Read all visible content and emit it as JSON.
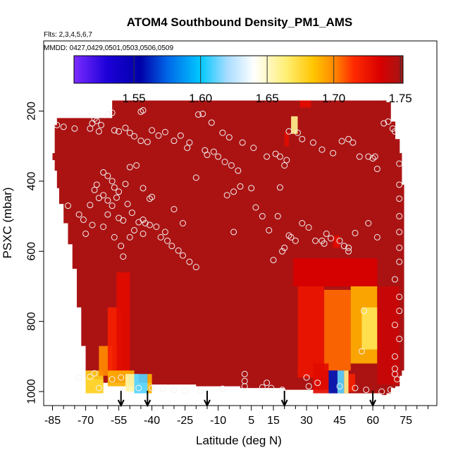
{
  "chart_data": {
    "type": "heatmap",
    "title": "ATOM4 Southbound Density_PM1_AMS",
    "flights_label": "Flts: 2,3,4,5,6,7",
    "dates_label": "MMDD: 0427,0429,0501,0503,0506,0509",
    "xlabel": "Latitude (deg N)",
    "ylabel": "PSXC (mbar)",
    "xlim": [
      -89,
      89
    ],
    "ylim": [
      1040,
      0
    ],
    "x_ticks": [
      -85,
      -70,
      -55,
      -40,
      -25,
      -10,
      5,
      15,
      30,
      45,
      60,
      75
    ],
    "x_tick_labels": [
      "-85",
      "-70",
      "-55",
      "-40",
      "-25",
      "-10",
      "5",
      "15",
      "30",
      "45",
      "60",
      "75"
    ],
    "y_ticks": [
      200,
      400,
      600,
      800,
      1000
    ],
    "y_tick_labels": [
      "200",
      "400",
      "600",
      "800",
      "1000"
    ],
    "colorbar": {
      "min": 1.505,
      "max": 1.752,
      "ticks": [
        1.55,
        1.6,
        1.65,
        1.7,
        1.75
      ],
      "tick_labels": [
        "1.55",
        "1.60",
        "1.65",
        "1.70",
        "1.75"
      ],
      "stops": [
        {
          "value": 1.505,
          "color": "#7b2cff"
        },
        {
          "value": 1.53,
          "color": "#1c00d8"
        },
        {
          "value": 1.555,
          "color": "#0000a8"
        },
        {
          "value": 1.575,
          "color": "#0066e8"
        },
        {
          "value": 1.6,
          "color": "#00c8ff"
        },
        {
          "value": 1.62,
          "color": "#a8dcff"
        },
        {
          "value": 1.64,
          "color": "#ffffff"
        },
        {
          "value": 1.665,
          "color": "#ffee70"
        },
        {
          "value": 1.685,
          "color": "#ffc400"
        },
        {
          "value": 1.7,
          "color": "#ff8a00"
        },
        {
          "value": 1.715,
          "color": "#ff2a00"
        },
        {
          "value": 1.735,
          "color": "#d80000"
        },
        {
          "value": 1.752,
          "color": "#a51616"
        }
      ]
    },
    "background_value": 1.75,
    "coverage": {
      "columns": [
        [
          -85,
          320,
          340
        ],
        [
          -84,
          240,
          370
        ],
        [
          -83,
          220,
          420
        ],
        [
          -82,
          220,
          465
        ],
        [
          -80,
          220,
          520
        ],
        [
          -78,
          220,
          580
        ],
        [
          -76,
          220,
          650
        ],
        [
          -74,
          220,
          760
        ],
        [
          -72,
          220,
          870
        ],
        [
          -70,
          220,
          960
        ],
        [
          -66,
          220,
          965
        ],
        [
          -62,
          220,
          975
        ],
        [
          -58,
          170,
          975
        ],
        [
          -40,
          170,
          980
        ],
        [
          -20,
          170,
          985
        ],
        [
          0,
          170,
          990
        ],
        [
          20,
          170,
          995
        ],
        [
          40,
          170,
          1005
        ],
        [
          55,
          170,
          1005
        ],
        [
          64,
          170,
          1010
        ],
        [
          66,
          175,
          1005
        ],
        [
          68,
          230,
          990
        ],
        [
          70,
          280,
          985
        ],
        [
          72,
          320,
          955
        ],
        [
          73,
          410,
          940
        ]
      ]
    },
    "anomalies": [
      {
        "lat": [
          -70,
          -62
        ],
        "p": [
          940,
          1005
        ],
        "value": 1.68
      },
      {
        "lat": [
          -64,
          -58
        ],
        "p": [
          870,
          955
        ],
        "value": 1.7
      },
      {
        "lat": [
          -60,
          -54
        ],
        "p": [
          760,
          960
        ],
        "value": 1.72
      },
      {
        "lat": [
          -56,
          -50
        ],
        "p": [
          660,
          960
        ],
        "value": 1.73
      },
      {
        "lat": [
          -60,
          -48
        ],
        "p": [
          940,
          985
        ],
        "value": 1.69
      },
      {
        "lat": [
          -52,
          -46
        ],
        "p": [
          950,
          1000
        ],
        "value": 1.655
      },
      {
        "lat": [
          -48,
          -42
        ],
        "p": [
          950,
          1005
        ],
        "value": 1.61
      },
      {
        "lat": [
          -42,
          -40
        ],
        "p": [
          950,
          1005
        ],
        "value": 1.69
      },
      {
        "lat": [
          27,
          32
        ],
        "p": [
          170,
          190
        ],
        "value": 1.73
      },
      {
        "lat": [
          23,
          26
        ],
        "p": [
          215,
          265
        ],
        "value": 1.66
      },
      {
        "lat": [
          20,
          22
        ],
        "p": [
          260,
          300
        ],
        "value": 1.73
      },
      {
        "lat": [
          24,
          62
        ],
        "p": [
          620,
          700
        ],
        "value": 1.735
      },
      {
        "lat": [
          26,
          38
        ],
        "p": [
          700,
          960
        ],
        "value": 1.725
      },
      {
        "lat": [
          38,
          50
        ],
        "p": [
          710,
          940
        ],
        "value": 1.705
      },
      {
        "lat": [
          50,
          62
        ],
        "p": [
          700,
          920
        ],
        "value": 1.69
      },
      {
        "lat": [
          55,
          62
        ],
        "p": [
          760,
          880
        ],
        "value": 1.67
      },
      {
        "lat": [
          62,
          72
        ],
        "p": [
          700,
          980
        ],
        "value": 1.74
      },
      {
        "lat": [
          33,
          40
        ],
        "p": [
          920,
          1005
        ],
        "value": 1.73
      },
      {
        "lat": [
          40,
          44
        ],
        "p": [
          940,
          1005
        ],
        "value": 1.56
      },
      {
        "lat": [
          44,
          47
        ],
        "p": [
          940,
          1005
        ],
        "value": 1.61
      },
      {
        "lat": [
          47,
          49
        ],
        "p": [
          940,
          1005
        ],
        "value": 1.66
      },
      {
        "lat": [
          49,
          52
        ],
        "p": [
          950,
          1000
        ],
        "value": 1.72
      },
      {
        "lat": [
          42,
          45
        ],
        "p": [
          555,
          590
        ],
        "value": 1.73
      }
    ],
    "points": [
      [
        -83,
        240
      ],
      [
        -80,
        245
      ],
      [
        -75,
        250
      ],
      [
        -68,
        250
      ],
      [
        -67,
        235
      ],
      [
        -66,
        222
      ],
      [
        -65,
        228
      ],
      [
        -64,
        258
      ],
      [
        -63,
        240
      ],
      [
        -60,
        210
      ],
      [
        -58,
        205
      ],
      [
        -57,
        255
      ],
      [
        -55,
        258
      ],
      [
        -52,
        248
      ],
      [
        -50,
        262
      ],
      [
        -48,
        272
      ],
      [
        -45,
        202
      ],
      [
        -44,
        198
      ],
      [
        -45,
        285
      ],
      [
        -42,
        288
      ],
      [
        -40,
        255
      ],
      [
        -37,
        270
      ],
      [
        -34,
        260
      ],
      [
        -30,
        285
      ],
      [
        -27,
        270
      ],
      [
        -24,
        305
      ],
      [
        -23,
        290
      ],
      [
        -16,
        312
      ],
      [
        -15,
        325
      ],
      [
        -12,
        316
      ],
      [
        -10,
        330
      ],
      [
        -7,
        345
      ],
      [
        -4,
        355
      ],
      [
        -1,
        370
      ],
      [
        -78,
        470
      ],
      [
        -73,
        495
      ],
      [
        -68,
        468
      ],
      [
        -66,
        425
      ],
      [
        -64,
        448
      ],
      [
        -62,
        440
      ],
      [
        -60,
        455
      ],
      [
        -58,
        470
      ],
      [
        -56,
        447
      ],
      [
        -55,
        505
      ],
      [
        -53,
        512
      ],
      [
        -51,
        465
      ],
      [
        -49,
        490
      ],
      [
        -46,
        517
      ],
      [
        -44,
        510
      ],
      [
        -43,
        520
      ],
      [
        -41,
        525
      ],
      [
        -38,
        530
      ],
      [
        -36,
        560
      ],
      [
        -33,
        570
      ],
      [
        -31,
        585
      ],
      [
        -28,
        598
      ],
      [
        -26,
        612
      ],
      [
        -23,
        630
      ],
      [
        -20,
        645
      ],
      [
        -62,
        375
      ],
      [
        -60,
        385
      ],
      [
        -58,
        400
      ],
      [
        -57,
        418
      ],
      [
        -55,
        430
      ],
      [
        -52,
        408
      ],
      [
        -50,
        360
      ],
      [
        -47,
        355
      ],
      [
        -44,
        420
      ],
      [
        -41,
        450
      ],
      [
        -30,
        480
      ],
      [
        -26,
        520
      ],
      [
        -20,
        390
      ],
      [
        -70,
        550
      ],
      [
        -67,
        525
      ],
      [
        -62,
        530
      ],
      [
        -57,
        560
      ],
      [
        -54,
        585
      ],
      [
        -53,
        615
      ],
      [
        -50,
        560
      ],
      [
        -48,
        540
      ],
      [
        -44,
        550
      ],
      [
        -34,
        545
      ],
      [
        -73,
        960
      ],
      [
        -68,
        958
      ],
      [
        -66,
        948
      ],
      [
        -64,
        990
      ],
      [
        -58,
        965
      ],
      [
        -54,
        960
      ],
      [
        -46,
        990
      ],
      [
        -40,
        990
      ],
      [
        -35,
        993
      ],
      [
        -30,
        995
      ],
      [
        -25,
        998
      ],
      [
        -18,
        998
      ],
      [
        -8,
        992
      ],
      [
        2,
        985
      ],
      [
        10,
        988
      ],
      [
        14,
        990
      ],
      [
        19,
        995
      ],
      [
        2,
        950
      ],
      [
        2,
        970
      ],
      [
        10,
        500
      ],
      [
        13,
        540
      ],
      [
        17,
        500
      ],
      [
        15,
        625
      ],
      [
        19,
        600
      ],
      [
        20,
        590
      ],
      [
        22,
        555
      ],
      [
        28,
        520
      ],
      [
        31,
        532
      ],
      [
        34,
        570
      ],
      [
        37,
        570
      ],
      [
        38,
        578
      ],
      [
        39,
        550
      ],
      [
        41,
        563
      ],
      [
        45,
        570
      ],
      [
        49,
        600
      ],
      [
        52,
        548
      ],
      [
        58,
        520
      ],
      [
        62,
        560
      ],
      [
        -19,
        210
      ],
      [
        -17,
        208
      ],
      [
        -13,
        233
      ],
      [
        -8,
        262
      ],
      [
        -5,
        275
      ],
      [
        1,
        290
      ],
      [
        6,
        305
      ],
      [
        12,
        330
      ],
      [
        16,
        322
      ],
      [
        18,
        330
      ],
      [
        20,
        355
      ],
      [
        21,
        340
      ],
      [
        22,
        258
      ],
      [
        26,
        262
      ],
      [
        28,
        280
      ],
      [
        33,
        290
      ],
      [
        37,
        310
      ],
      [
        42,
        320
      ],
      [
        46,
        286
      ],
      [
        49,
        280
      ],
      [
        51,
        290
      ],
      [
        54,
        330
      ],
      [
        58,
        330
      ],
      [
        60,
        335
      ],
      [
        61,
        330
      ],
      [
        62,
        365
      ],
      [
        65,
        235
      ],
      [
        67,
        230
      ],
      [
        69,
        250
      ],
      [
        70,
        258
      ],
      [
        72,
        350
      ],
      [
        72,
        410
      ],
      [
        72,
        450
      ],
      [
        72,
        500
      ],
      [
        72,
        545
      ],
      [
        72,
        590
      ],
      [
        72,
        630
      ],
      [
        70,
        680
      ],
      [
        72,
        730
      ],
      [
        72,
        770
      ],
      [
        70,
        810
      ],
      [
        72,
        850
      ],
      [
        70,
        900
      ],
      [
        70,
        935
      ],
      [
        70,
        950
      ],
      [
        71,
        965
      ],
      [
        68,
        995
      ],
      [
        30,
        960
      ],
      [
        35,
        975
      ],
      [
        45,
        985
      ],
      [
        52,
        990
      ],
      [
        57,
        995
      ],
      [
        64,
        1000
      ],
      [
        12,
        975
      ],
      [
        31,
        985
      ],
      [
        56,
        770
      ],
      [
        55,
        885
      ],
      [
        49,
        590
      ],
      [
        47,
        585
      ],
      [
        -6,
        440
      ],
      [
        -3,
        430
      ],
      [
        0,
        415
      ],
      [
        5,
        420
      ],
      [
        7,
        475
      ],
      [
        18,
        418
      ],
      [
        23,
        560
      ],
      [
        25,
        570
      ],
      [
        -3,
        545
      ],
      [
        -65,
        410
      ],
      [
        -71,
        510
      ],
      [
        -60,
        495
      ],
      [
        -40,
        445
      ]
    ],
    "arrows": [
      -54,
      -42,
      -15,
      20,
      60
    ]
  }
}
